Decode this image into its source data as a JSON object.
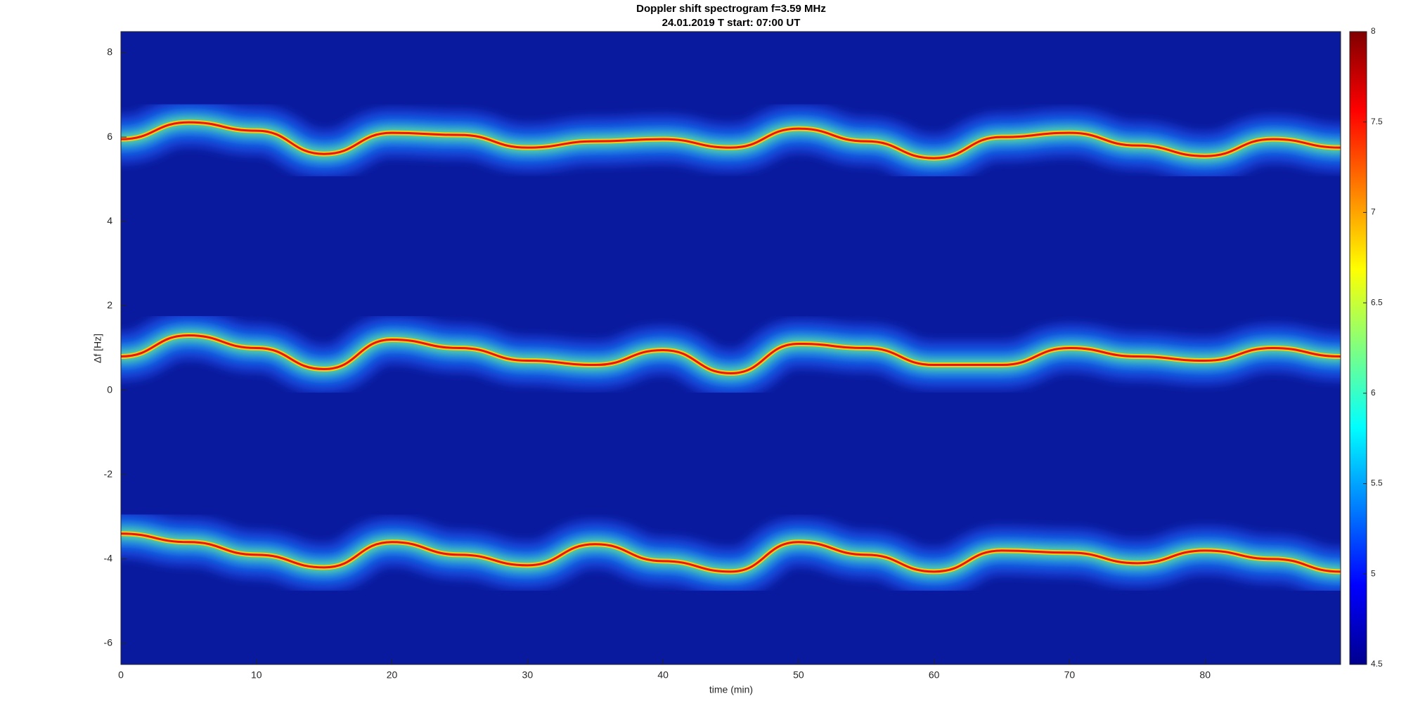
{
  "chart_data": {
    "type": "spectrogram",
    "title": "Doppler shift spectrogram f=3.59 MHz",
    "subtitle": "24.01.2019   T start: 07:00 UT",
    "x_label": "time (min)",
    "y_label": "Δf [Hz]",
    "xlim": [
      0,
      90
    ],
    "ylim": [
      -6.5,
      8.5
    ],
    "xticks": [
      0,
      10,
      20,
      30,
      40,
      50,
      60,
      70,
      80
    ],
    "yticks": [
      -6,
      -4,
      -2,
      0,
      2,
      4,
      6,
      8
    ],
    "clim": [
      4.5,
      8
    ],
    "cticks": [
      4.5,
      5,
      5.5,
      6,
      6.5,
      7,
      7.5,
      8
    ],
    "colormap": "jet",
    "x": [
      0,
      5,
      10,
      15,
      20,
      25,
      30,
      35,
      40,
      45,
      50,
      55,
      60,
      65,
      70,
      75,
      80,
      85,
      90
    ],
    "series": [
      {
        "values": [
          5.95,
          6.35,
          6.15,
          5.6,
          6.1,
          6.05,
          5.75,
          5.9,
          5.95,
          5.75,
          6.2,
          5.9,
          5.5,
          6.0,
          6.1,
          5.8,
          5.55,
          5.95,
          5.75
        ]
      },
      {
        "values": [
          0.8,
          1.3,
          1.0,
          0.5,
          1.2,
          1.0,
          0.7,
          0.6,
          0.95,
          0.4,
          1.1,
          1.0,
          0.6,
          0.6,
          1.0,
          0.8,
          0.7,
          1.0,
          0.8
        ]
      },
      {
        "values": [
          -3.4,
          -3.6,
          -3.9,
          -4.2,
          -3.6,
          -3.9,
          -4.15,
          -3.65,
          -4.05,
          -4.3,
          -3.6,
          -3.9,
          -4.3,
          -3.8,
          -3.85,
          -4.1,
          -3.8,
          -4.0,
          -4.3
        ]
      }
    ]
  }
}
